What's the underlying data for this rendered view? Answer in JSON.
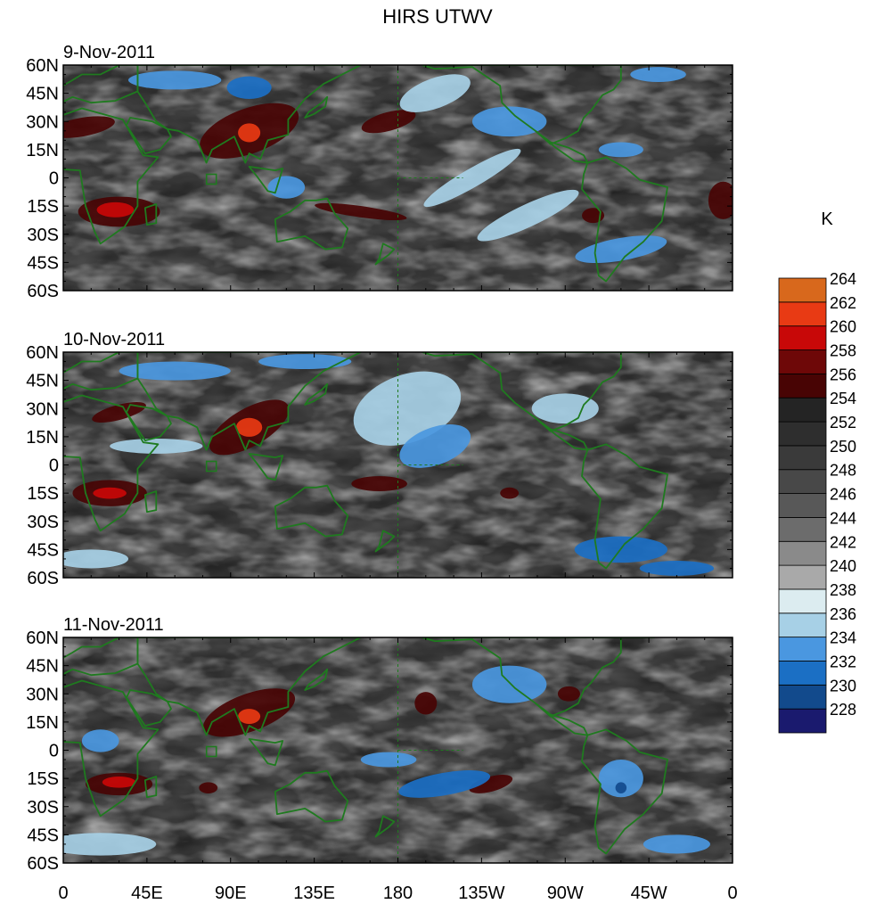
{
  "title": "HIRS UTWV",
  "units_label": "K",
  "panels": [
    {
      "date": "9-Nov-2011"
    },
    {
      "date": "10-Nov-2011"
    },
    {
      "date": "11-Nov-2011"
    }
  ],
  "lat_labels": [
    "60N",
    "45N",
    "30N",
    "15N",
    "0",
    "15S",
    "30S",
    "45S",
    "60S"
  ],
  "lon_labels": [
    "0",
    "45E",
    "90E",
    "135E",
    "180",
    "135W",
    "90W",
    "45W",
    "0"
  ],
  "colorbar": {
    "colors": [
      "#1a1a6e",
      "#124a8c",
      "#1b6fc4",
      "#4a97e0",
      "#a7d0e6",
      "#dcecf0",
      "#a9a9a9",
      "#8a8a8a",
      "#6c6c6c",
      "#585858",
      "#484848",
      "#3a3a3a",
      "#2e2e2e",
      "#242424",
      "#480404",
      "#6e0808",
      "#c80808",
      "#e83a14",
      "#d8681c"
    ],
    "tick_labels": [
      "228",
      "230",
      "232",
      "234",
      "236",
      "238",
      "240",
      "242",
      "244",
      "246",
      "248",
      "250",
      "252",
      "254",
      "256",
      "258",
      "260",
      "262",
      "264"
    ]
  },
  "coastline_color": "#1f7a1f"
}
